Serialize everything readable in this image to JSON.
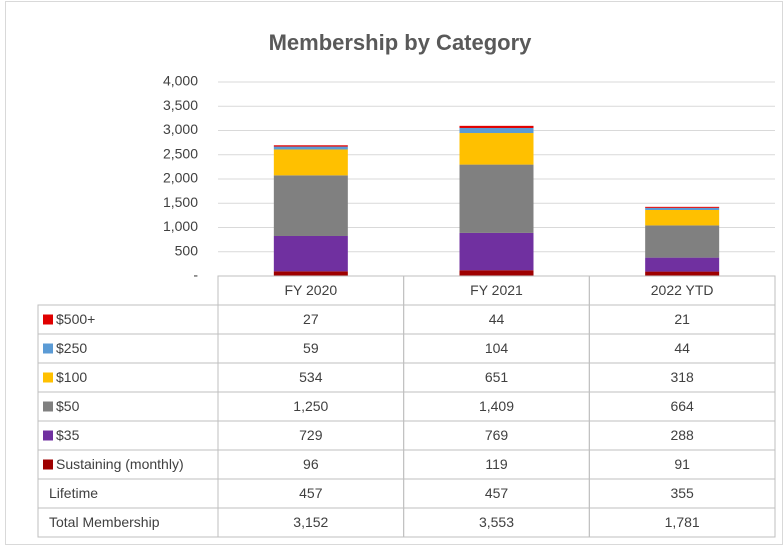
{
  "chart_data": {
    "type": "stacked_bar",
    "title": "Membership by Category",
    "categories": [
      "FY 2020",
      "FY 2021",
      "2022 YTD"
    ],
    "series": [
      {
        "name": "Sustaining (monthly)",
        "color": "#9e0000",
        "values": [
          96,
          119,
          91
        ]
      },
      {
        "name": "$35",
        "color": "#7030a0",
        "values": [
          729,
          769,
          288
        ]
      },
      {
        "name": "$50",
        "color": "#808080",
        "values": [
          1250,
          1409,
          664
        ],
        "value_labels": [
          "1,250",
          "1,409",
          "664"
        ]
      },
      {
        "name": "$100",
        "color": "#ffc000",
        "values": [
          534,
          651,
          318
        ]
      },
      {
        "name": "$250",
        "color": "#5b9bd5",
        "values": [
          59,
          104,
          44
        ]
      },
      {
        "name": "$500+",
        "color": "#e00000",
        "values": [
          27,
          44,
          21
        ]
      }
    ],
    "table_rows": [
      {
        "name": "Lifetime",
        "values": [
          457,
          457,
          355
        ]
      },
      {
        "name": "Total Membership",
        "values": [
          3152,
          3553,
          1781
        ],
        "value_labels": [
          "3,152",
          "3,553",
          "1,781"
        ]
      }
    ],
    "ylim": [
      0,
      4000
    ],
    "yticks": [
      {
        "value": 0,
        "label": "-"
      },
      500,
      {
        "value": 1000,
        "label": "1,000"
      },
      {
        "value": 1500,
        "label": "1,500"
      },
      {
        "value": 2000,
        "label": "2,000"
      },
      {
        "value": 2500,
        "label": "2,500"
      },
      {
        "value": 3000,
        "label": "3,000"
      },
      {
        "value": 3500,
        "label": "3,500"
      },
      {
        "value": 4000,
        "label": "4,000"
      }
    ],
    "grid": true
  }
}
